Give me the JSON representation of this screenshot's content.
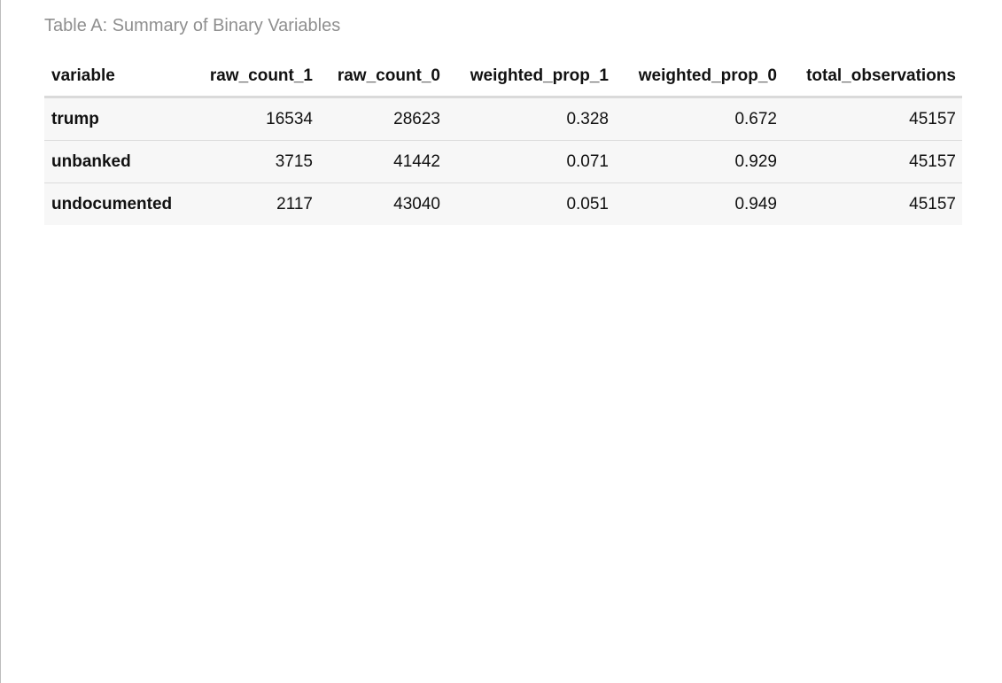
{
  "caption": "Table A: Summary of Binary Variables",
  "columns": [
    "variable",
    "raw_count_1",
    "raw_count_0",
    "weighted_prop_1",
    "weighted_prop_0",
    "total_observations"
  ],
  "rows": [
    [
      "trump",
      "16534",
      "28623",
      "0.328",
      "0.672",
      "45157"
    ],
    [
      "unbanked",
      "3715",
      "41442",
      "0.071",
      "0.929",
      "45157"
    ],
    [
      "undocumented",
      "2117",
      "43040",
      "0.051",
      "0.949",
      "45157"
    ]
  ]
}
